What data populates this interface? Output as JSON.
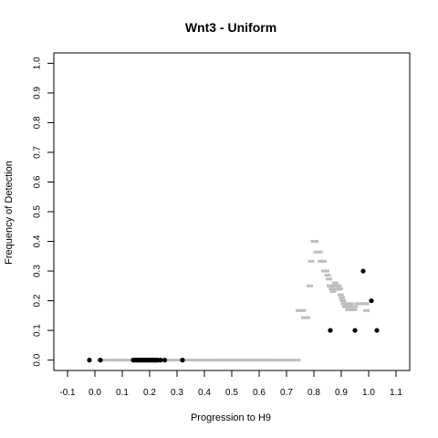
{
  "chart_data": {
    "type": "scatter",
    "title": "Wnt3 - Uniform",
    "xlabel": "Progression to H9",
    "ylabel": "Frequency of Detection",
    "xlim": [
      -0.15,
      1.15
    ],
    "ylim": [
      -0.035,
      1.035
    ],
    "x_ticks": [
      -0.1,
      0.0,
      0.1,
      0.2,
      0.3,
      0.4,
      0.5,
      0.6,
      0.7,
      0.8,
      0.9,
      1.0,
      1.1
    ],
    "x_tick_labels": [
      "-0.1",
      "0.0",
      "0.1",
      "0.2",
      "0.3",
      "0.4",
      "0.5",
      "0.6",
      "0.7",
      "0.8",
      "0.9",
      "1.0",
      "1.1"
    ],
    "y_ticks": [
      0.0,
      0.1,
      0.2,
      0.3,
      0.4,
      0.5,
      0.6,
      0.7,
      0.8,
      0.9,
      1.0
    ],
    "y_tick_labels": [
      "0.0",
      "0.1",
      "0.2",
      "0.3",
      "0.4",
      "0.5",
      "0.6",
      "0.7",
      "0.8",
      "0.9",
      "1.0"
    ],
    "grid": false,
    "series": [
      {
        "color": "#bebebe",
        "marker": "dash",
        "points": [
          {
            "x": 0.02,
            "y": 0.0
          },
          {
            "x": 0.04,
            "y": 0.0
          },
          {
            "x": 0.06,
            "y": 0.0
          },
          {
            "x": 0.08,
            "y": 0.0
          },
          {
            "x": 0.1,
            "y": 0.0
          },
          {
            "x": 0.12,
            "y": 0.0
          },
          {
            "x": 0.14,
            "y": 0.0
          },
          {
            "x": 0.16,
            "y": 0.0
          },
          {
            "x": 0.18,
            "y": 0.0
          },
          {
            "x": 0.2,
            "y": 0.0
          },
          {
            "x": 0.22,
            "y": 0.0
          },
          {
            "x": 0.24,
            "y": 0.0
          },
          {
            "x": 0.26,
            "y": 0.0
          },
          {
            "x": 0.28,
            "y": 0.0
          },
          {
            "x": 0.3,
            "y": 0.0
          },
          {
            "x": 0.32,
            "y": 0.0
          },
          {
            "x": 0.34,
            "y": 0.0
          },
          {
            "x": 0.36,
            "y": 0.0
          },
          {
            "x": 0.38,
            "y": 0.0
          },
          {
            "x": 0.4,
            "y": 0.0
          },
          {
            "x": 0.42,
            "y": 0.0
          },
          {
            "x": 0.44,
            "y": 0.0
          },
          {
            "x": 0.46,
            "y": 0.0
          },
          {
            "x": 0.48,
            "y": 0.0
          },
          {
            "x": 0.5,
            "y": 0.0
          },
          {
            "x": 0.52,
            "y": 0.0
          },
          {
            "x": 0.54,
            "y": 0.0
          },
          {
            "x": 0.56,
            "y": 0.0
          },
          {
            "x": 0.58,
            "y": 0.0
          },
          {
            "x": 0.6,
            "y": 0.0
          },
          {
            "x": 0.62,
            "y": 0.0
          },
          {
            "x": 0.64,
            "y": 0.0
          },
          {
            "x": 0.66,
            "y": 0.0
          },
          {
            "x": 0.68,
            "y": 0.0
          },
          {
            "x": 0.7,
            "y": 0.0
          },
          {
            "x": 0.72,
            "y": 0.0
          },
          {
            "x": 0.74,
            "y": 0.0
          },
          {
            "x": 0.745,
            "y": 0.167
          },
          {
            "x": 0.76,
            "y": 0.167
          },
          {
            "x": 0.765,
            "y": 0.143
          },
          {
            "x": 0.775,
            "y": 0.143
          },
          {
            "x": 0.785,
            "y": 0.25
          },
          {
            "x": 0.79,
            "y": 0.333
          },
          {
            "x": 0.8,
            "y": 0.4
          },
          {
            "x": 0.805,
            "y": 0.4
          },
          {
            "x": 0.81,
            "y": 0.364
          },
          {
            "x": 0.82,
            "y": 0.364
          },
          {
            "x": 0.825,
            "y": 0.333
          },
          {
            "x": 0.835,
            "y": 0.333
          },
          {
            "x": 0.838,
            "y": 0.3
          },
          {
            "x": 0.845,
            "y": 0.3
          },
          {
            "x": 0.85,
            "y": 0.286
          },
          {
            "x": 0.855,
            "y": 0.273
          },
          {
            "x": 0.858,
            "y": 0.25
          },
          {
            "x": 0.862,
            "y": 0.25
          },
          {
            "x": 0.866,
            "y": 0.24
          },
          {
            "x": 0.87,
            "y": 0.231
          },
          {
            "x": 0.874,
            "y": 0.25
          },
          {
            "x": 0.878,
            "y": 0.26
          },
          {
            "x": 0.882,
            "y": 0.25
          },
          {
            "x": 0.886,
            "y": 0.238
          },
          {
            "x": 0.89,
            "y": 0.25
          },
          {
            "x": 0.894,
            "y": 0.24
          },
          {
            "x": 0.898,
            "y": 0.22
          },
          {
            "x": 0.902,
            "y": 0.21
          },
          {
            "x": 0.906,
            "y": 0.2
          },
          {
            "x": 0.91,
            "y": 0.19
          },
          {
            "x": 0.914,
            "y": 0.18
          },
          {
            "x": 0.918,
            "y": 0.19
          },
          {
            "x": 0.922,
            "y": 0.18
          },
          {
            "x": 0.926,
            "y": 0.17
          },
          {
            "x": 0.93,
            "y": 0.18
          },
          {
            "x": 0.934,
            "y": 0.19
          },
          {
            "x": 0.938,
            "y": 0.17
          },
          {
            "x": 0.942,
            "y": 0.18
          },
          {
            "x": 0.946,
            "y": 0.17
          },
          {
            "x": 0.95,
            "y": 0.18
          },
          {
            "x": 0.96,
            "y": 0.19
          },
          {
            "x": 0.97,
            "y": 0.19
          },
          {
            "x": 0.98,
            "y": 0.19
          },
          {
            "x": 0.99,
            "y": 0.19
          },
          {
            "x": 0.992,
            "y": 0.167
          }
        ]
      },
      {
        "color": "#000000",
        "marker": "dot",
        "points": [
          {
            "x": -0.02,
            "y": 0.0
          },
          {
            "x": 0.02,
            "y": 0.0
          },
          {
            "x": 0.14,
            "y": 0.0
          },
          {
            "x": 0.145,
            "y": 0.0
          },
          {
            "x": 0.15,
            "y": 0.0
          },
          {
            "x": 0.155,
            "y": 0.0
          },
          {
            "x": 0.16,
            "y": 0.0
          },
          {
            "x": 0.165,
            "y": 0.0
          },
          {
            "x": 0.17,
            "y": 0.0
          },
          {
            "x": 0.175,
            "y": 0.0
          },
          {
            "x": 0.18,
            "y": 0.0
          },
          {
            "x": 0.185,
            "y": 0.0
          },
          {
            "x": 0.19,
            "y": 0.0
          },
          {
            "x": 0.195,
            "y": 0.0
          },
          {
            "x": 0.2,
            "y": 0.0
          },
          {
            "x": 0.205,
            "y": 0.0
          },
          {
            "x": 0.21,
            "y": 0.0
          },
          {
            "x": 0.215,
            "y": 0.0
          },
          {
            "x": 0.22,
            "y": 0.0
          },
          {
            "x": 0.225,
            "y": 0.0
          },
          {
            "x": 0.23,
            "y": 0.0
          },
          {
            "x": 0.24,
            "y": 0.0
          },
          {
            "x": 0.255,
            "y": 0.0
          },
          {
            "x": 0.32,
            "y": 0.0
          },
          {
            "x": 0.86,
            "y": 0.1
          },
          {
            "x": 0.95,
            "y": 0.1
          },
          {
            "x": 0.98,
            "y": 0.3
          },
          {
            "x": 1.01,
            "y": 0.2
          },
          {
            "x": 1.03,
            "y": 0.1
          }
        ]
      }
    ]
  }
}
